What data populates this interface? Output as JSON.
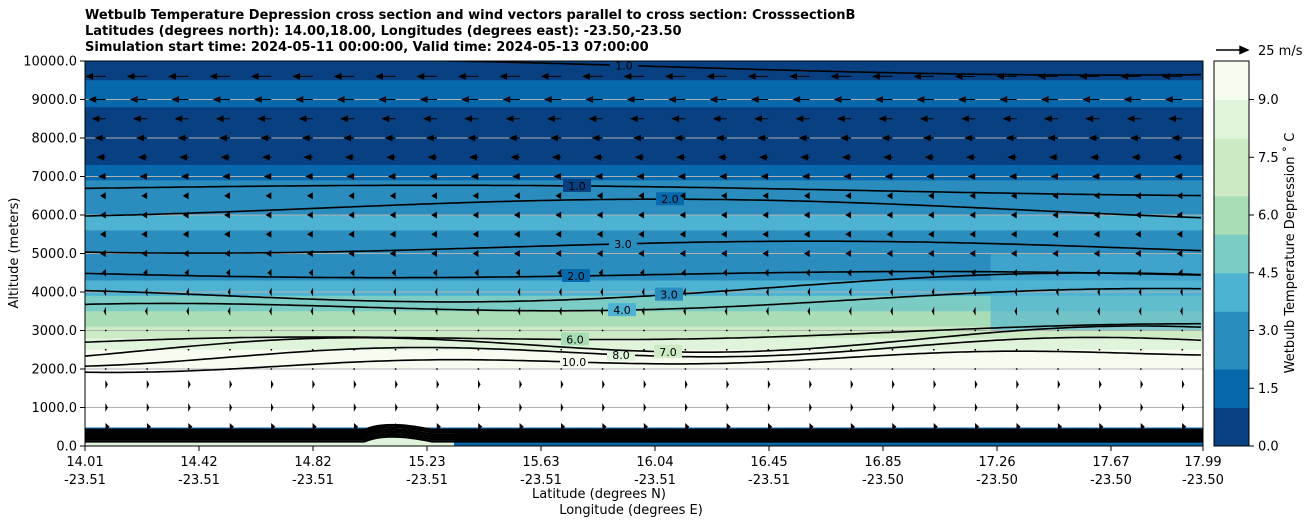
{
  "chart_data": {
    "type": "contour",
    "title_lines": [
      "Wetbulb Temperature Depression cross section and wind vectors parallel to cross section: CrosssectionB",
      "Latitudes (degrees north): 14.00,18.00, Longitudes (degrees east): -23.50,-23.50",
      "Simulation start time: 2024-05-11 00:00:00, Valid time: 2024-05-13 07:00:00"
    ],
    "ylabel": "Altitude (meters)",
    "xlabel_lat": "Latitude (degrees N)",
    "xlabel_lon": "Longitude (degrees E)",
    "ylim": [
      0,
      10000
    ],
    "y_ticks": [
      "0.0",
      "1000.0",
      "2000.0",
      "3000.0",
      "4000.0",
      "5000.0",
      "6000.0",
      "7000.0",
      "8000.0",
      "9000.0",
      "10000.0"
    ],
    "x_ticks": [
      {
        "lat": "14.01",
        "lon": "-23.51"
      },
      {
        "lat": "14.42",
        "lon": "-23.51"
      },
      {
        "lat": "14.82",
        "lon": "-23.51"
      },
      {
        "lat": "15.23",
        "lon": "-23.51"
      },
      {
        "lat": "15.63",
        "lon": "-23.51"
      },
      {
        "lat": "16.04",
        "lon": "-23.51"
      },
      {
        "lat": "16.45",
        "lon": "-23.51"
      },
      {
        "lat": "16.85",
        "lon": "-23.50"
      },
      {
        "lat": "17.26",
        "lon": "-23.50"
      },
      {
        "lat": "17.67",
        "lon": "-23.50"
      },
      {
        "lat": "17.99",
        "lon": "-23.50"
      }
    ],
    "colorbar": {
      "label": "Wetbulb Temperature Depression ˚ C",
      "range": [
        0,
        10
      ],
      "ticks": [
        "0.0",
        "1.5",
        "3.0",
        "4.5",
        "6.0",
        "7.5",
        "9.0"
      ],
      "tick_values": [
        0,
        1.5,
        3,
        4.5,
        6,
        7.5,
        9
      ],
      "colors": [
        "#084081",
        "#0868ac",
        "#2b8cbe",
        "#4eb3d3",
        "#7bccc4",
        "#a8ddb5",
        "#ccebc5",
        "#e0f3db",
        "#f7fcf0"
      ]
    },
    "contours": [
      {
        "level": 10.0,
        "label": "10.0",
        "alt": 2000
      },
      {
        "level": 8.0,
        "label": "8.0",
        "alt": 2250
      },
      {
        "level": 7.0,
        "label": "7.0",
        "alt": 2450
      },
      {
        "level": 6.0,
        "label": "6.0",
        "alt": 2650
      },
      {
        "level": 4.0,
        "label": "4.0",
        "alt": 3500
      },
      {
        "level": 3.0,
        "label": "3.0",
        "alt": 3850
      },
      {
        "level": 2.0,
        "label": "2.0",
        "alt": 4500
      },
      {
        "level": 3.0,
        "label": "3.0",
        "alt": 5200
      },
      {
        "level": 2.0,
        "label": "2.0",
        "alt": 6200
      },
      {
        "level": 1.0,
        "label": "1.0",
        "alt": 6700
      },
      {
        "level": 1.0,
        "label": "1.0",
        "alt": 9900
      }
    ],
    "wind_reference": {
      "label": "25 m/s",
      "speed": 25
    },
    "wind_vectors": [
      {
        "alt": 9600,
        "u": -12
      },
      {
        "alt": 9000,
        "u": -10
      },
      {
        "alt": 8500,
        "u": -8
      },
      {
        "alt": 8000,
        "u": -6
      },
      {
        "alt": 7500,
        "u": -5
      },
      {
        "alt": 7000,
        "u": -4
      },
      {
        "alt": 6500,
        "u": -3
      },
      {
        "alt": 6000,
        "u": -3
      },
      {
        "alt": 5500,
        "u": -3
      },
      {
        "alt": 5000,
        "u": -3
      },
      {
        "alt": 4500,
        "u": -2
      },
      {
        "alt": 4000,
        "u": -1
      },
      {
        "alt": 3500,
        "u": -1
      },
      {
        "alt": 3000,
        "u": 0
      },
      {
        "alt": 2500,
        "u": 0
      },
      {
        "alt": 2000,
        "u": 0
      },
      {
        "alt": 1600,
        "u": 1
      },
      {
        "alt": 1000,
        "u": 1
      },
      {
        "alt": 500,
        "u": 2
      }
    ]
  }
}
